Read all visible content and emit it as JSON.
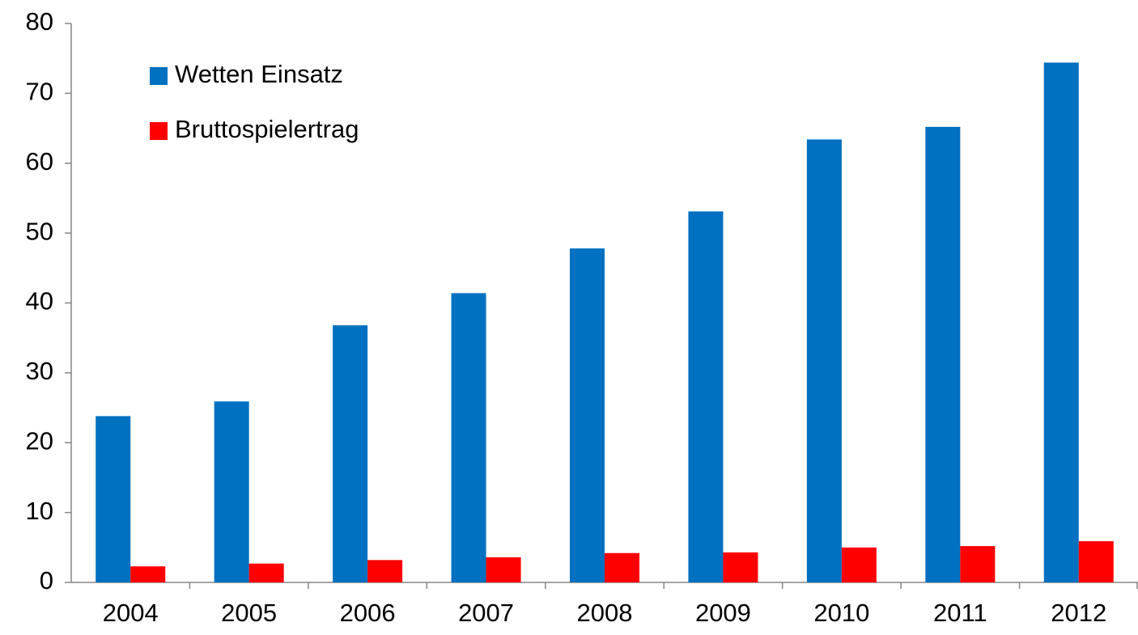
{
  "chart_data": {
    "type": "bar",
    "categories": [
      "2004",
      "2005",
      "2006",
      "2007",
      "2008",
      "2009",
      "2010",
      "2011",
      "2012"
    ],
    "series": [
      {
        "name": "Wetten Einsatz",
        "color": "#0070c0",
        "values": [
          23.8,
          25.9,
          36.8,
          41.4,
          47.8,
          53.1,
          63.4,
          65.2,
          74.4
        ]
      },
      {
        "name": "Bruttospielertrag",
        "color": "#ff0000",
        "values": [
          2.3,
          2.7,
          3.2,
          3.6,
          4.2,
          4.3,
          5.0,
          5.2,
          5.9
        ]
      }
    ],
    "ylim": [
      0,
      80
    ],
    "yticks": [
      0,
      10,
      20,
      30,
      40,
      50,
      60,
      70,
      80
    ],
    "grid": false,
    "legend": "top-left"
  }
}
